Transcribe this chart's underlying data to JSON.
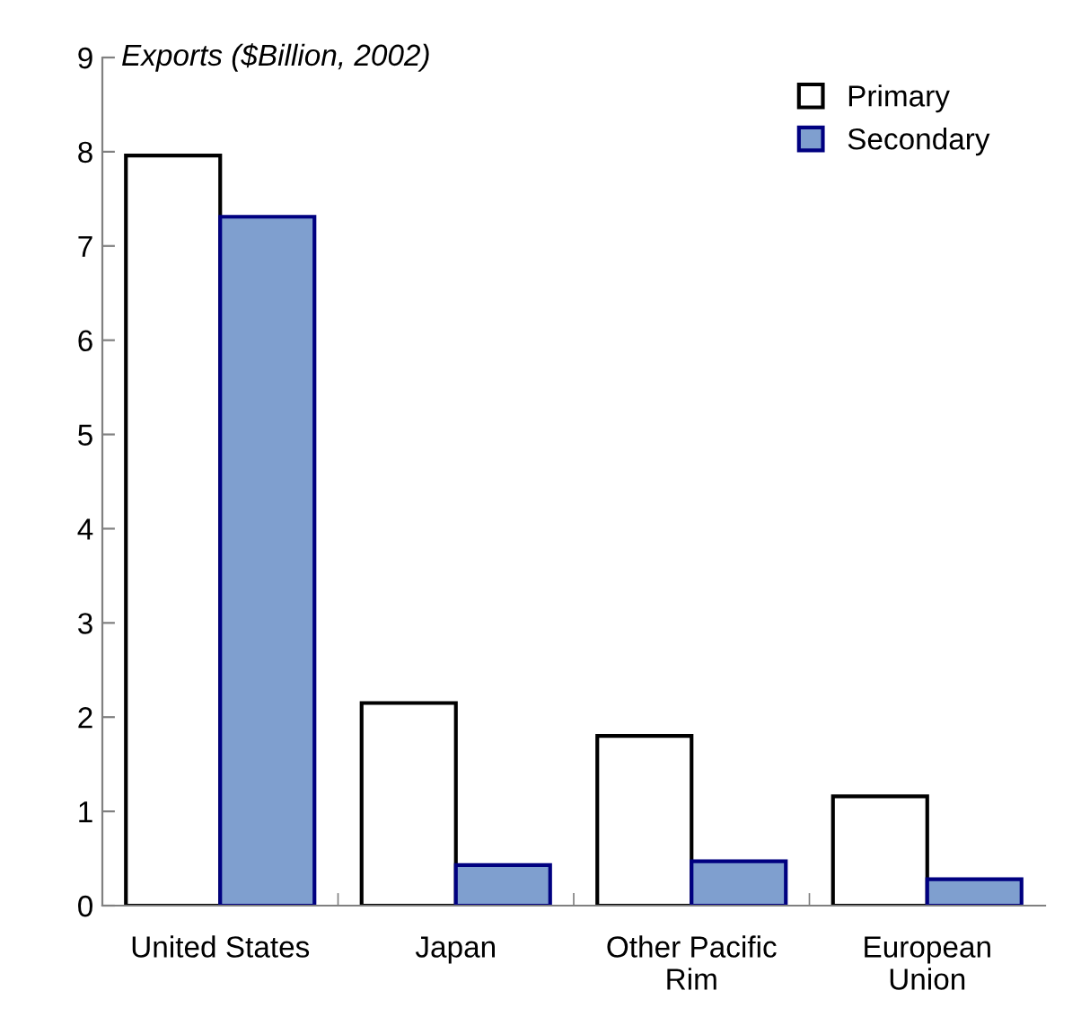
{
  "chart_data": {
    "type": "bar",
    "title": "Exports ($Billion, 2002)",
    "categories": [
      "United States",
      "Japan",
      "Other Pacific\nRim",
      "European\nUnion"
    ],
    "series": [
      {
        "name": "Primary",
        "color": "#ffffff",
        "values": [
          7.96,
          2.15,
          1.8,
          1.16
        ]
      },
      {
        "name": "Secondary",
        "color": "#7f9fcf",
        "values": [
          7.31,
          0.43,
          0.47,
          0.28
        ]
      }
    ],
    "ylim": [
      0,
      9
    ],
    "yticks": [
      0,
      1,
      2,
      3,
      4,
      5,
      6,
      7,
      8,
      9
    ],
    "grid": false,
    "legend": "top right"
  }
}
